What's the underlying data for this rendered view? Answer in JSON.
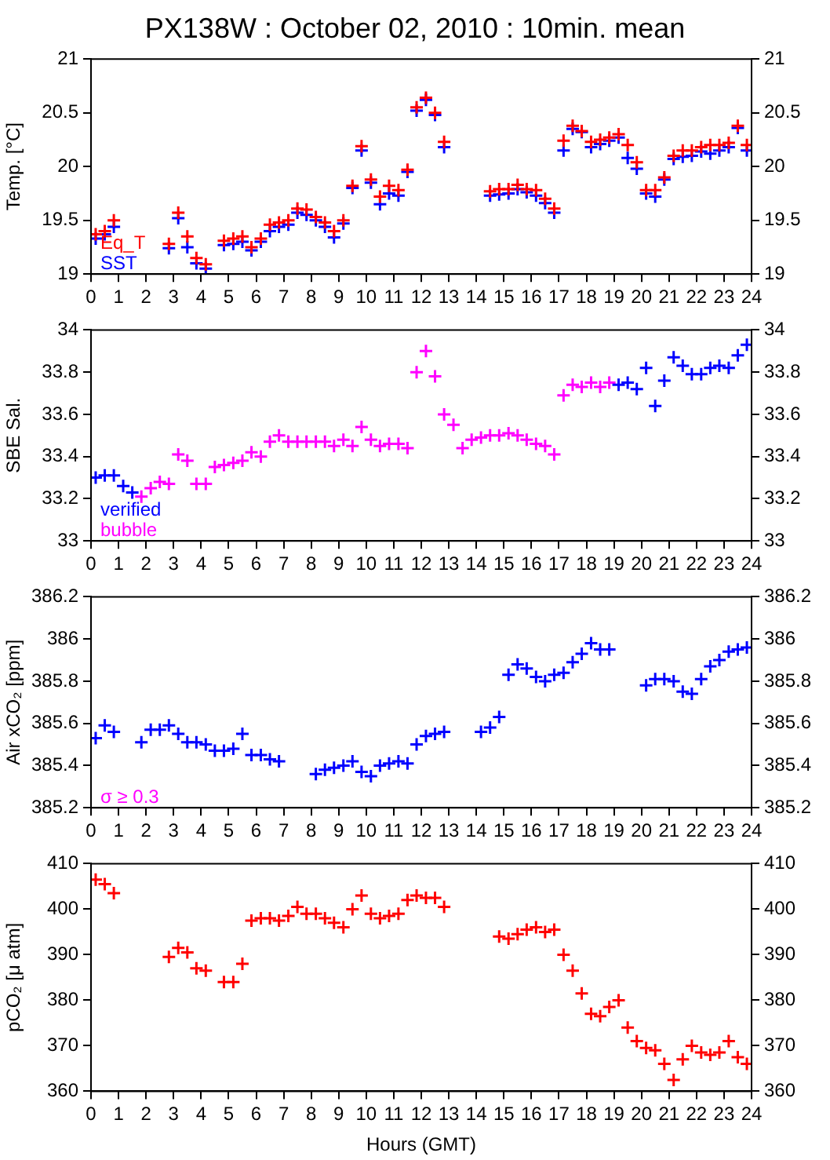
{
  "chart_data": [
    {
      "type": "scatter",
      "title": "PX138W : October 02, 2010 : 10min. mean",
      "ylabel": "Temp. [°C]",
      "marker": "cross",
      "legend": "bottom left",
      "x": [
        0.17,
        0.5,
        0.83,
        1.17,
        1.5,
        1.83,
        2.17,
        2.5,
        2.83,
        3.17,
        3.5,
        3.83,
        4.17,
        4.5,
        4.83,
        5.17,
        5.5,
        5.83,
        6.17,
        6.5,
        6.83,
        7.17,
        7.5,
        7.83,
        8.17,
        8.5,
        8.83,
        9.17,
        9.5,
        9.83,
        10.17,
        10.5,
        10.83,
        11.17,
        11.5,
        11.83,
        12.17,
        12.5,
        12.83,
        13.17,
        13.5,
        13.83,
        14.17,
        14.5,
        14.83,
        15.17,
        15.5,
        15.83,
        16.17,
        16.5,
        16.83,
        17.17,
        17.5,
        17.83,
        18.17,
        18.5,
        18.83,
        19.17,
        19.5,
        19.83,
        20.17,
        20.5,
        20.83,
        21.17,
        21.5,
        21.83,
        22.17,
        22.5,
        22.83,
        23.17,
        23.5,
        23.83
      ],
      "series": [
        {
          "name": "Eq_T",
          "color": "#ff0000",
          "values": [
            19.37,
            19.4,
            19.5,
            null,
            null,
            null,
            null,
            null,
            19.28,
            19.57,
            19.35,
            19.15,
            19.09,
            null,
            19.31,
            19.33,
            19.35,
            19.25,
            19.33,
            19.46,
            19.48,
            19.5,
            19.61,
            19.6,
            19.53,
            19.48,
            19.4,
            19.5,
            19.82,
            20.19,
            19.88,
            19.72,
            19.82,
            19.78,
            19.97,
            20.55,
            20.64,
            20.5,
            20.23,
            null,
            null,
            null,
            null,
            19.77,
            19.79,
            19.79,
            19.83,
            19.79,
            19.78,
            19.7,
            19.61,
            20.24,
            20.38,
            20.33,
            20.23,
            20.25,
            20.27,
            20.3,
            20.2,
            20.04,
            19.78,
            19.78,
            19.9,
            20.1,
            20.15,
            20.15,
            20.18,
            20.2,
            20.2,
            20.22,
            20.38,
            20.2
          ]
        },
        {
          "name": "SST",
          "color": "#0000ff",
          "values": [
            19.33,
            19.37,
            19.44,
            null,
            null,
            null,
            null,
            null,
            19.24,
            19.52,
            19.25,
            19.1,
            19.05,
            null,
            19.27,
            19.28,
            19.3,
            19.22,
            19.3,
            19.4,
            19.44,
            19.46,
            19.57,
            19.55,
            19.5,
            19.44,
            19.34,
            19.47,
            19.8,
            20.15,
            19.85,
            19.65,
            19.75,
            19.73,
            19.95,
            20.52,
            20.62,
            20.48,
            20.18,
            null,
            null,
            null,
            null,
            19.73,
            19.74,
            19.75,
            19.79,
            19.76,
            19.73,
            19.66,
            19.57,
            20.15,
            20.35,
            20.32,
            20.18,
            20.21,
            20.24,
            20.27,
            20.08,
            19.98,
            19.75,
            19.72,
            19.88,
            20.07,
            20.09,
            20.1,
            20.14,
            20.12,
            20.15,
            20.18,
            20.36,
            20.15
          ]
        }
      ],
      "xlim": [
        0,
        24
      ],
      "xticks": [
        0,
        1,
        2,
        3,
        4,
        5,
        6,
        7,
        8,
        9,
        10,
        11,
        12,
        13,
        14,
        15,
        16,
        17,
        18,
        19,
        20,
        21,
        22,
        23,
        24
      ],
      "ylim": [
        19,
        21
      ],
      "yticks": [
        19,
        19.5,
        20,
        20.5,
        21
      ],
      "y2lim": [
        19,
        21
      ],
      "y2ticks": [
        19,
        19.5,
        20,
        20.5,
        21
      ]
    },
    {
      "type": "scatter",
      "ylabel": "SBE Sal.",
      "marker": "cross",
      "legend": "bottom left",
      "x": [
        0.17,
        0.5,
        0.83,
        1.17,
        1.5,
        1.83,
        2.17,
        2.5,
        2.83,
        3.17,
        3.5,
        3.83,
        4.17,
        4.5,
        4.83,
        5.17,
        5.5,
        5.83,
        6.17,
        6.5,
        6.83,
        7.17,
        7.5,
        7.83,
        8.17,
        8.5,
        8.83,
        9.17,
        9.5,
        9.83,
        10.17,
        10.5,
        10.83,
        11.17,
        11.5,
        11.83,
        12.17,
        12.5,
        12.83,
        13.17,
        13.5,
        13.83,
        14.17,
        14.5,
        14.83,
        15.17,
        15.5,
        15.83,
        16.17,
        16.5,
        16.83,
        17.17,
        17.5,
        17.83,
        18.17,
        18.5,
        18.83,
        19.17,
        19.5,
        19.83,
        20.17,
        20.5,
        20.83,
        21.17,
        21.5,
        21.83,
        22.17,
        22.5,
        22.83,
        23.17,
        23.5,
        23.83
      ],
      "series": [
        {
          "name": "verified",
          "color": "#0000ff",
          "values": [
            33.3,
            33.31,
            33.31,
            33.26,
            33.23,
            null,
            null,
            null,
            null,
            null,
            null,
            null,
            null,
            null,
            null,
            null,
            null,
            null,
            null,
            null,
            null,
            null,
            null,
            null,
            null,
            null,
            null,
            null,
            null,
            null,
            null,
            null,
            null,
            null,
            null,
            null,
            null,
            null,
            null,
            null,
            null,
            null,
            null,
            null,
            null,
            null,
            null,
            null,
            null,
            null,
            null,
            null,
            null,
            null,
            null,
            null,
            null,
            33.74,
            33.75,
            33.72,
            33.82,
            33.64,
            33.76,
            33.87,
            33.83,
            33.79,
            33.79,
            33.82,
            33.83,
            33.82,
            33.88,
            33.93
          ]
        },
        {
          "name": "bubble",
          "color": "#ff00ff",
          "values": [
            null,
            null,
            null,
            null,
            null,
            33.21,
            33.25,
            33.28,
            33.27,
            33.41,
            33.38,
            33.27,
            33.27,
            33.35,
            33.36,
            33.37,
            33.38,
            33.42,
            33.4,
            33.47,
            33.5,
            33.47,
            33.47,
            33.47,
            33.47,
            33.47,
            33.45,
            33.48,
            33.45,
            33.54,
            33.48,
            33.45,
            33.46,
            33.46,
            33.44,
            33.8,
            33.9,
            33.78,
            33.6,
            33.55,
            33.44,
            33.48,
            33.49,
            33.5,
            33.5,
            33.51,
            33.5,
            33.48,
            33.46,
            33.45,
            33.41,
            33.69,
            33.74,
            33.73,
            33.75,
            33.73,
            33.75,
            null,
            null,
            null,
            null,
            null,
            null,
            null,
            null,
            null,
            null,
            null,
            null,
            null,
            null,
            null
          ]
        }
      ],
      "xlim": [
        0,
        24
      ],
      "xticks": [
        0,
        1,
        2,
        3,
        4,
        5,
        6,
        7,
        8,
        9,
        10,
        11,
        12,
        13,
        14,
        15,
        16,
        17,
        18,
        19,
        20,
        21,
        22,
        23,
        24
      ],
      "ylim": [
        33,
        34
      ],
      "yticks": [
        33,
        33.2,
        33.4,
        33.6,
        33.8,
        34
      ],
      "y2lim": [
        33,
        34
      ],
      "y2ticks": [
        33,
        33.2,
        33.4,
        33.6,
        33.8,
        34
      ]
    },
    {
      "type": "scatter",
      "ylabel": "Air xCO₂ [ppm]",
      "marker": "cross",
      "annotations": [
        "σ ≥ 0.3"
      ],
      "x": [
        0.17,
        0.5,
        0.83,
        1.17,
        1.5,
        1.83,
        2.17,
        2.5,
        2.83,
        3.17,
        3.5,
        3.83,
        4.17,
        4.5,
        4.83,
        5.17,
        5.5,
        5.83,
        6.17,
        6.5,
        6.83,
        7.17,
        7.5,
        7.83,
        8.17,
        8.5,
        8.83,
        9.17,
        9.5,
        9.83,
        10.17,
        10.5,
        10.83,
        11.17,
        11.5,
        11.83,
        12.17,
        12.5,
        12.83,
        13.17,
        13.5,
        13.83,
        14.17,
        14.5,
        14.83,
        15.17,
        15.5,
        15.83,
        16.17,
        16.5,
        16.83,
        17.17,
        17.5,
        17.83,
        18.17,
        18.5,
        18.83,
        19.17,
        19.5,
        19.83,
        20.17,
        20.5,
        20.83,
        21.17,
        21.5,
        21.83,
        22.17,
        22.5,
        22.83,
        23.17,
        23.5,
        23.83
      ],
      "series": [
        {
          "color": "#0000ff",
          "values": [
            385.53,
            385.59,
            385.56,
            null,
            null,
            385.51,
            385.57,
            385.57,
            385.59,
            385.55,
            385.51,
            385.51,
            385.5,
            385.47,
            385.47,
            385.48,
            385.55,
            385.45,
            385.45,
            385.43,
            385.42,
            null,
            null,
            null,
            385.36,
            385.38,
            385.39,
            385.4,
            385.42,
            385.37,
            385.35,
            385.4,
            385.41,
            385.42,
            385.41,
            385.5,
            385.54,
            385.55,
            385.56,
            null,
            null,
            null,
            385.56,
            385.58,
            385.63,
            385.83,
            385.88,
            385.86,
            385.82,
            385.8,
            385.83,
            385.84,
            385.89,
            385.93,
            385.98,
            385.95,
            385.95,
            null,
            null,
            null,
            385.78,
            385.81,
            385.81,
            385.8,
            385.75,
            385.74,
            385.81,
            385.87,
            385.9,
            385.94,
            385.95,
            385.96
          ]
        }
      ],
      "xlim": [
        0,
        24
      ],
      "xticks": [
        0,
        1,
        2,
        3,
        4,
        5,
        6,
        7,
        8,
        9,
        10,
        11,
        12,
        13,
        14,
        15,
        16,
        17,
        18,
        19,
        20,
        21,
        22,
        23,
        24
      ],
      "ylim": [
        385.2,
        386.2
      ],
      "yticks": [
        385.2,
        385.4,
        385.6,
        385.8,
        386,
        386.2
      ],
      "y2lim": [
        385.2,
        386.2
      ],
      "y2ticks": [
        385.2,
        385.4,
        385.6,
        385.8,
        386,
        386.2
      ]
    },
    {
      "type": "scatter",
      "ylabel": "pCO₂ [μ atm]",
      "xlabel": "Hours (GMT)",
      "marker": "cross",
      "x": [
        0.17,
        0.5,
        0.83,
        1.17,
        1.5,
        1.83,
        2.17,
        2.5,
        2.83,
        3.17,
        3.5,
        3.83,
        4.17,
        4.5,
        4.83,
        5.17,
        5.5,
        5.83,
        6.17,
        6.5,
        6.83,
        7.17,
        7.5,
        7.83,
        8.17,
        8.5,
        8.83,
        9.17,
        9.5,
        9.83,
        10.17,
        10.5,
        10.83,
        11.17,
        11.5,
        11.83,
        12.17,
        12.5,
        12.83,
        13.17,
        13.5,
        13.83,
        14.17,
        14.5,
        14.83,
        15.17,
        15.5,
        15.83,
        16.17,
        16.5,
        16.83,
        17.17,
        17.5,
        17.83,
        18.17,
        18.5,
        18.83,
        19.17,
        19.5,
        19.83,
        20.17,
        20.5,
        20.83,
        21.17,
        21.5,
        21.83,
        22.17,
        22.5,
        22.83,
        23.17,
        23.5,
        23.83
      ],
      "series": [
        {
          "color": "#ff0000",
          "values": [
            406.5,
            405.5,
            403.5,
            null,
            null,
            null,
            null,
            null,
            389.5,
            391.5,
            390.5,
            387,
            386.5,
            null,
            384,
            384,
            388,
            397.5,
            398,
            398,
            397.5,
            398.5,
            400.5,
            399,
            399,
            398,
            397,
            396,
            400,
            403,
            399,
            398,
            398.5,
            399,
            402,
            403,
            402.5,
            402.5,
            400.5,
            null,
            null,
            null,
            null,
            null,
            394,
            393.5,
            394.5,
            395.5,
            396,
            395,
            395.5,
            390,
            386.5,
            381.5,
            377,
            376.5,
            378.5,
            380,
            374,
            371,
            369.5,
            369,
            366,
            362.5,
            367,
            370,
            368.5,
            368,
            368.5,
            371,
            367.5,
            366
          ]
        }
      ],
      "xlim": [
        0,
        24
      ],
      "xticks": [
        0,
        1,
        2,
        3,
        4,
        5,
        6,
        7,
        8,
        9,
        10,
        11,
        12,
        13,
        14,
        15,
        16,
        17,
        18,
        19,
        20,
        21,
        22,
        23,
        24
      ],
      "ylim": [
        360,
        410
      ],
      "yticks": [
        360,
        370,
        380,
        390,
        400,
        410
      ],
      "y2lim": [
        360,
        410
      ],
      "y2ticks": [
        360,
        370,
        380,
        390,
        400,
        410
      ]
    }
  ]
}
